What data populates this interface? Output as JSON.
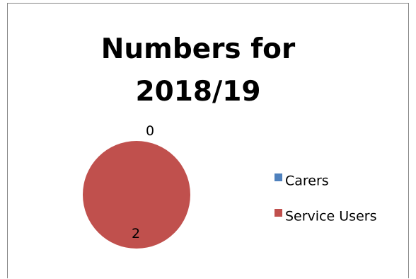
{
  "chart_data": {
    "type": "pie",
    "title": "Numbers for 2018/19",
    "categories": [
      "Carers",
      "Service Users"
    ],
    "values": [
      0,
      2
    ],
    "data_labels": [
      "0",
      "2"
    ],
    "colors": [
      "#4F81BD",
      "#C0504D"
    ],
    "legend": {
      "placement": "right",
      "entries": [
        "Carers",
        "Service Users"
      ]
    }
  }
}
